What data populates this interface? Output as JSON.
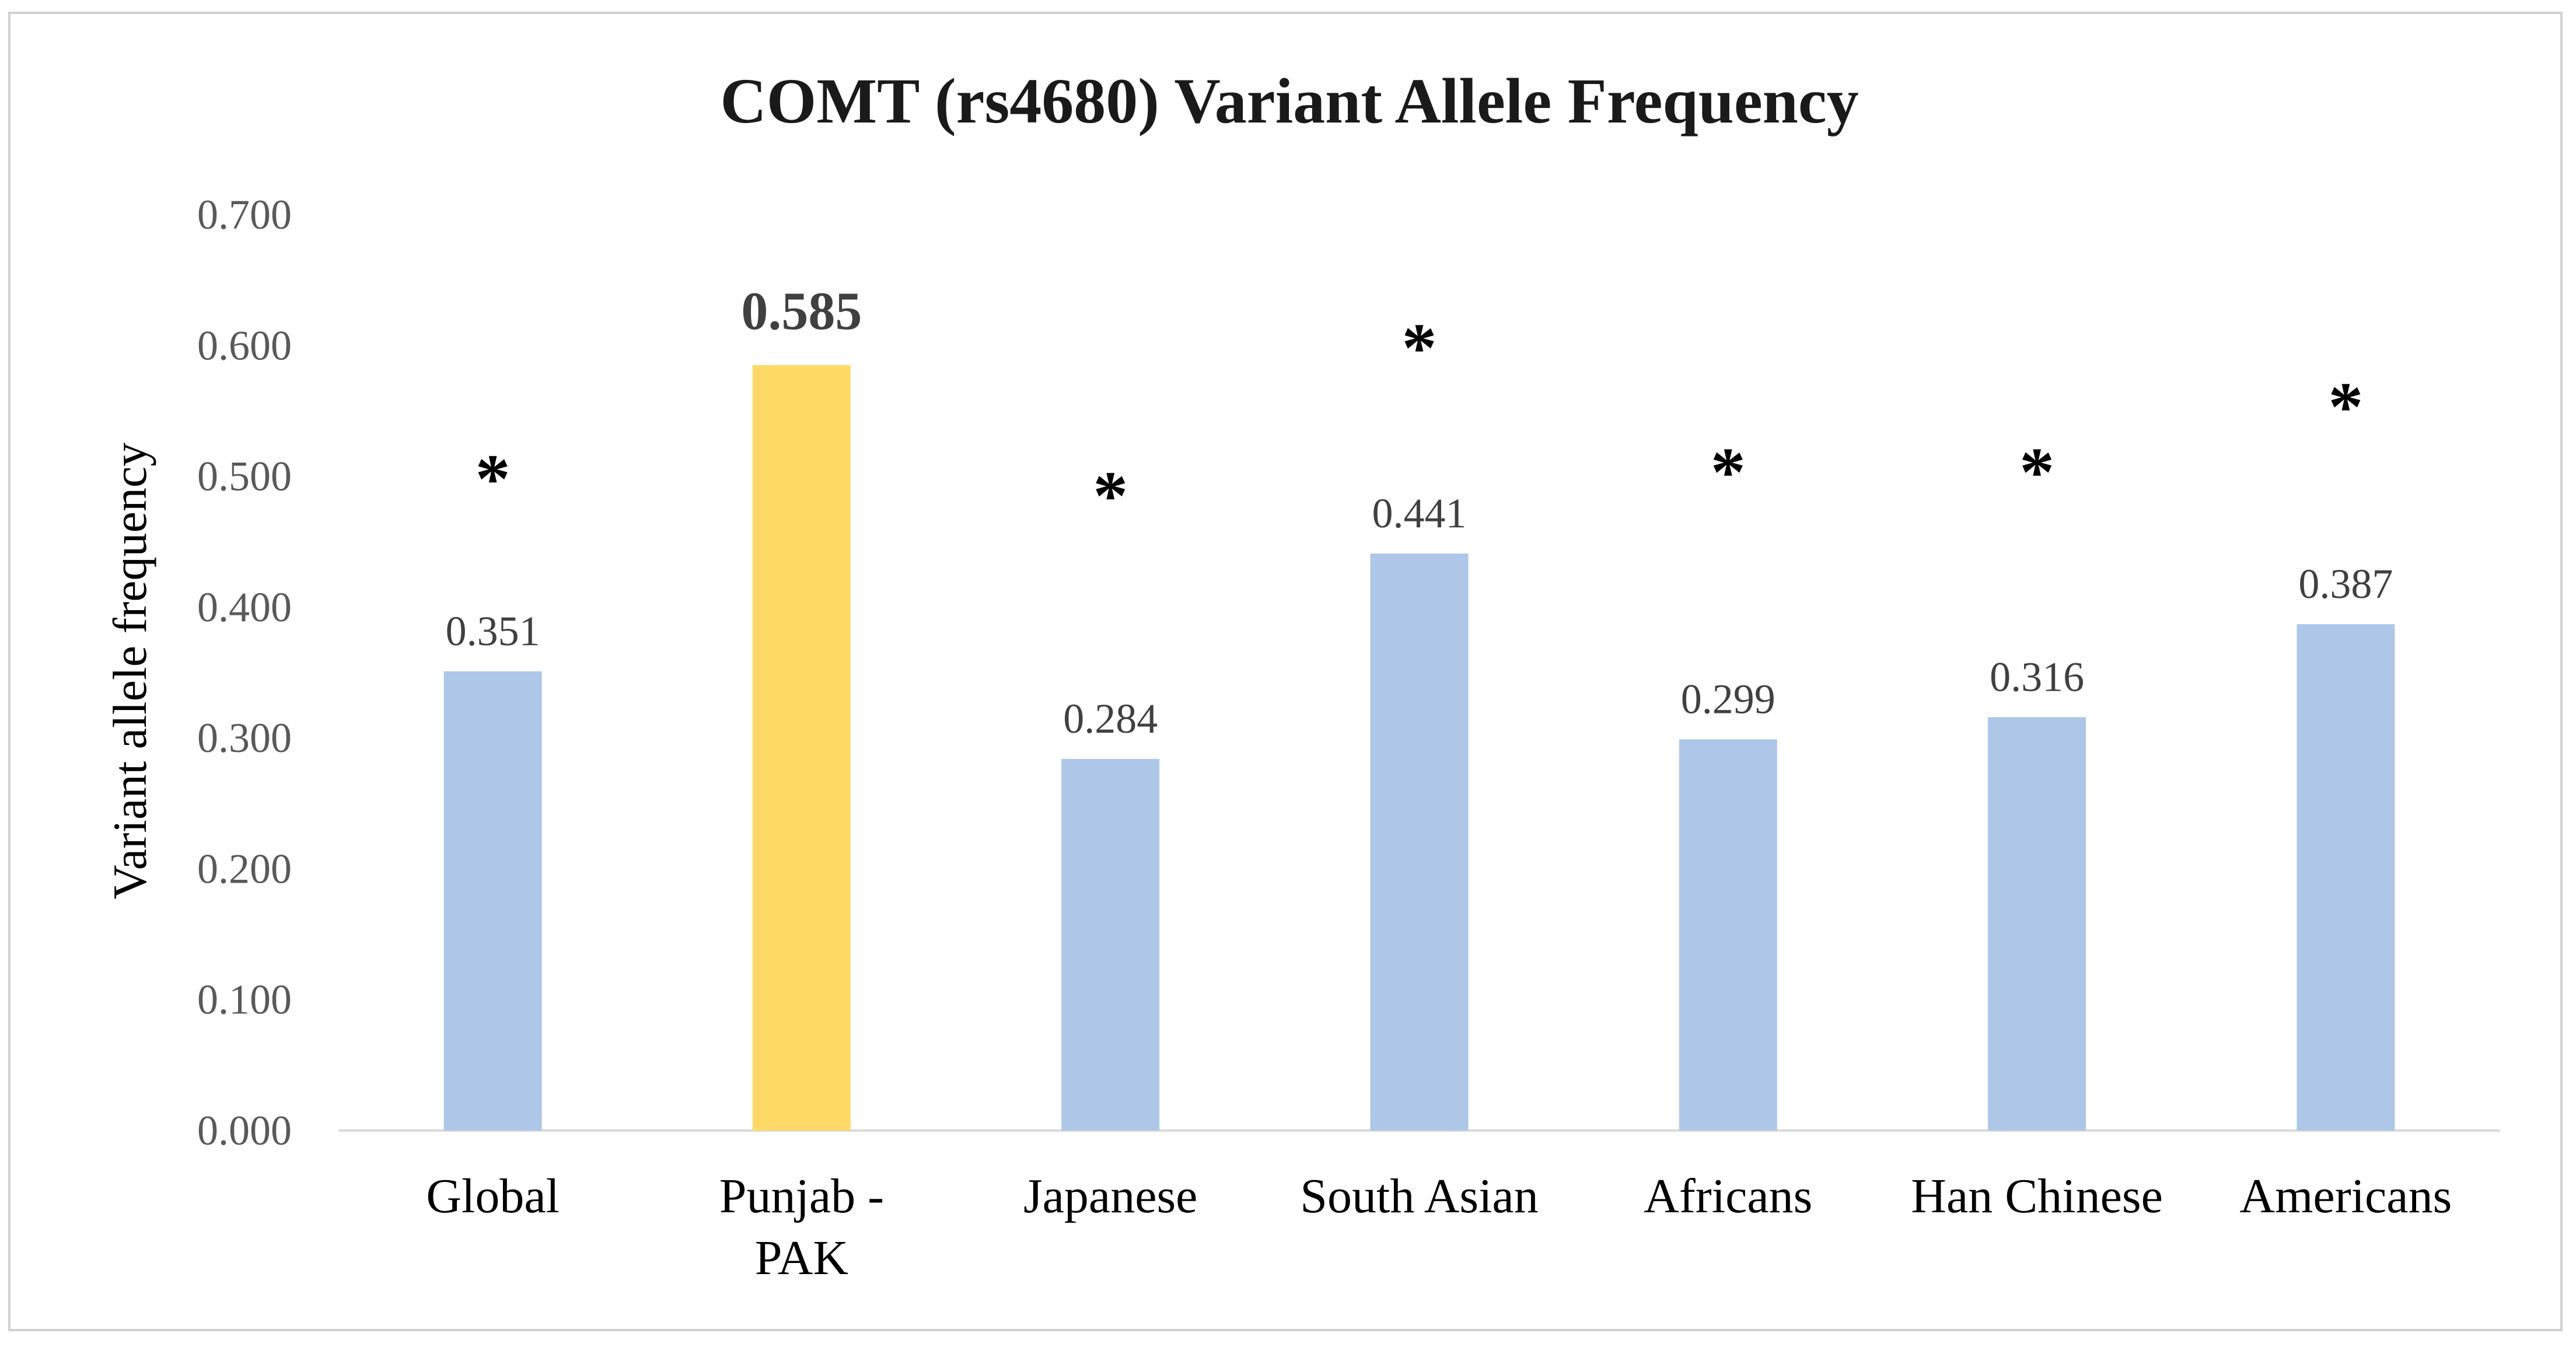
{
  "chart_data": {
    "type": "bar",
    "title": "COMT (rs4680) Variant Allele Frequency",
    "ylabel": "Variant allele frequency",
    "xlabel": "",
    "ylim": [
      0,
      0.7
    ],
    "yticks": [
      "0.000",
      "0.100",
      "0.200",
      "0.300",
      "0.400",
      "0.500",
      "0.600",
      "0.700"
    ],
    "categories": [
      [
        "Global"
      ],
      [
        "Punjab -",
        "PAK"
      ],
      [
        "Japanese"
      ],
      [
        "South Asian"
      ],
      [
        "Africans"
      ],
      [
        "Han Chinese"
      ],
      [
        "Americans"
      ]
    ],
    "values": [
      0.351,
      0.585,
      0.284,
      0.441,
      0.299,
      0.316,
      0.387
    ],
    "value_labels": [
      "0.351",
      "0.585",
      "0.284",
      "0.441",
      "0.299",
      "0.316",
      "0.387"
    ],
    "highlight_index": 1,
    "significance_marks": [
      "*",
      "",
      "*",
      "*",
      "*",
      "*",
      "*"
    ],
    "bar_color": "#aec7e8",
    "highlight_color": "#ffd966",
    "grid": false,
    "legend": "none"
  }
}
